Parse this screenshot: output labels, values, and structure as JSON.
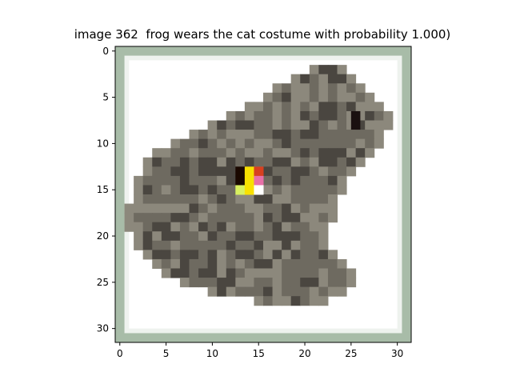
{
  "title": "image 362  frog wears the cat costume with probability 1.000)",
  "image": {
    "subject": "frog",
    "grid_size": 32,
    "body_color": "#6e6a60",
    "body_dark": "#4a4640",
    "body_light": "#8c887c",
    "frame_color": "#a8bca8",
    "background_color": "#ffffff",
    "eye_color": "#1a1010",
    "patch_colors": {
      "black": "#1a0800",
      "yellow": "#f8e000",
      "red": "#d84020",
      "pink": "#e870a8",
      "lime": "#d8f060",
      "white": "#ffffff"
    }
  },
  "axes": {
    "x_ticks": [
      "0",
      "5",
      "10",
      "15",
      "20",
      "25",
      "30"
    ],
    "y_ticks": [
      "0",
      "5",
      "10",
      "15",
      "20",
      "25",
      "30"
    ]
  }
}
